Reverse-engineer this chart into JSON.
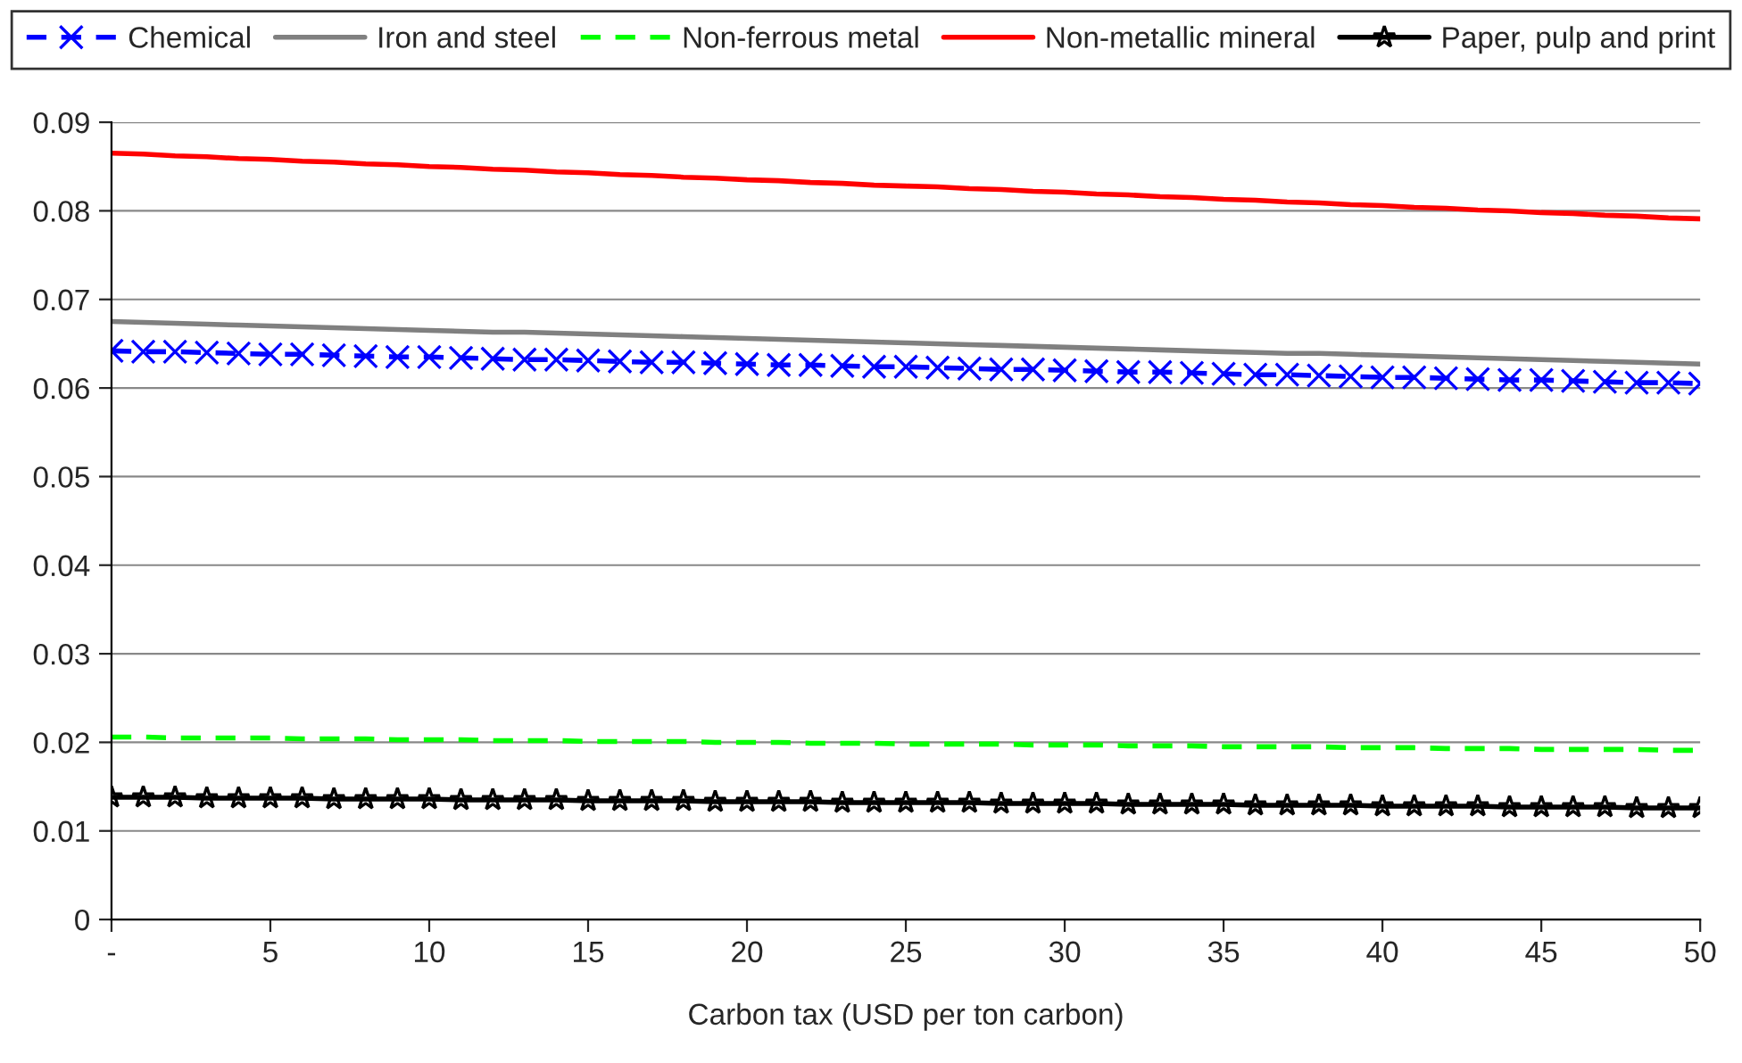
{
  "chart_data": {
    "type": "line",
    "xlabel": "Carbon tax (USD per ton carbon)",
    "x": [
      0,
      1,
      2,
      3,
      4,
      5,
      6,
      7,
      8,
      9,
      10,
      11,
      12,
      13,
      14,
      15,
      16,
      17,
      18,
      19,
      20,
      21,
      22,
      23,
      24,
      25,
      26,
      27,
      28,
      29,
      30,
      31,
      32,
      33,
      34,
      35,
      36,
      37,
      38,
      39,
      40,
      41,
      42,
      43,
      44,
      45,
      46,
      47,
      48,
      49,
      50
    ],
    "xlim": [
      0,
      50
    ],
    "xticks": [
      {
        "value": 0,
        "label": "-"
      },
      5,
      10,
      15,
      20,
      25,
      30,
      35,
      40,
      45,
      50
    ],
    "ylim": [
      0,
      0.09
    ],
    "yticks": [
      0,
      0.01,
      0.02,
      0.03,
      0.04,
      0.05,
      0.06,
      0.07,
      0.08,
      0.09
    ],
    "grid": "y",
    "legend": "top",
    "series": [
      {
        "name": "Chemical",
        "color": "#0000ff",
        "marker": "cross",
        "line_style": "dashed",
        "values": [
          0.0642,
          0.0641,
          0.0641,
          0.064,
          0.0639,
          0.0638,
          0.0638,
          0.0637,
          0.0636,
          0.0635,
          0.0635,
          0.0634,
          0.0633,
          0.0632,
          0.0632,
          0.0631,
          0.063,
          0.0629,
          0.0629,
          0.0628,
          0.0627,
          0.0626,
          0.0626,
          0.0625,
          0.0624,
          0.0624,
          0.0623,
          0.0622,
          0.0621,
          0.0621,
          0.062,
          0.0619,
          0.0618,
          0.0618,
          0.0617,
          0.0616,
          0.0615,
          0.0615,
          0.0614,
          0.0613,
          0.0612,
          0.0612,
          0.0611,
          0.061,
          0.0609,
          0.0609,
          0.0608,
          0.0607,
          0.0606,
          0.0606,
          0.0605
        ]
      },
      {
        "name": "Iron and steel",
        "color": "#808080",
        "line_style": "solid",
        "values": [
          0.0675,
          0.0674,
          0.0673,
          0.0672,
          0.0671,
          0.067,
          0.0669,
          0.0668,
          0.0667,
          0.0666,
          0.0665,
          0.0664,
          0.0663,
          0.0663,
          0.0662,
          0.0661,
          0.066,
          0.0659,
          0.0658,
          0.0657,
          0.0656,
          0.0655,
          0.0654,
          0.0653,
          0.0652,
          0.0651,
          0.065,
          0.0649,
          0.0648,
          0.0647,
          0.0646,
          0.0645,
          0.0644,
          0.0643,
          0.0642,
          0.0641,
          0.064,
          0.0639,
          0.0639,
          0.0638,
          0.0637,
          0.0636,
          0.0635,
          0.0634,
          0.0633,
          0.0632,
          0.0631,
          0.063,
          0.0629,
          0.0628,
          0.0627
        ]
      },
      {
        "name": "Non-ferrous metal",
        "color": "#00ff00",
        "line_style": "dashed",
        "values": [
          0.0206,
          0.0206,
          0.0205,
          0.0205,
          0.0205,
          0.0205,
          0.0204,
          0.0204,
          0.0204,
          0.0203,
          0.0203,
          0.0203,
          0.0202,
          0.0202,
          0.0202,
          0.0201,
          0.0201,
          0.0201,
          0.0201,
          0.02,
          0.02,
          0.02,
          0.0199,
          0.0199,
          0.0199,
          0.0198,
          0.0198,
          0.0198,
          0.0198,
          0.0197,
          0.0197,
          0.0197,
          0.0196,
          0.0196,
          0.0196,
          0.0195,
          0.0195,
          0.0195,
          0.0195,
          0.0194,
          0.0194,
          0.0194,
          0.0193,
          0.0193,
          0.0193,
          0.0192,
          0.0192,
          0.0192,
          0.0192,
          0.0191,
          0.0191
        ]
      },
      {
        "name": "Non-metallic mineral",
        "color": "#ff0000",
        "line_style": "solid",
        "values": [
          0.0865,
          0.0864,
          0.0862,
          0.0861,
          0.0859,
          0.0858,
          0.0856,
          0.0855,
          0.0853,
          0.0852,
          0.085,
          0.0849,
          0.0847,
          0.0846,
          0.0844,
          0.0843,
          0.0841,
          0.084,
          0.0838,
          0.0837,
          0.0835,
          0.0834,
          0.0832,
          0.0831,
          0.0829,
          0.0828,
          0.0827,
          0.0825,
          0.0824,
          0.0822,
          0.0821,
          0.0819,
          0.0818,
          0.0816,
          0.0815,
          0.0813,
          0.0812,
          0.081,
          0.0809,
          0.0807,
          0.0806,
          0.0804,
          0.0803,
          0.0801,
          0.08,
          0.0798,
          0.0797,
          0.0795,
          0.0794,
          0.0792,
          0.0791
        ]
      },
      {
        "name": "Paper, pulp and print",
        "color": "#000000",
        "marker": "star",
        "line_style": "solid",
        "values": [
          0.0138,
          0.0138,
          0.0138,
          0.0137,
          0.0137,
          0.0137,
          0.0137,
          0.0136,
          0.0136,
          0.0136,
          0.0136,
          0.0135,
          0.0135,
          0.0135,
          0.0135,
          0.0134,
          0.0134,
          0.0134,
          0.0134,
          0.0133,
          0.0133,
          0.0133,
          0.0133,
          0.0132,
          0.0132,
          0.0132,
          0.0132,
          0.0132,
          0.0131,
          0.0131,
          0.0131,
          0.0131,
          0.013,
          0.013,
          0.013,
          0.013,
          0.0129,
          0.0129,
          0.0129,
          0.0129,
          0.0128,
          0.0128,
          0.0128,
          0.0128,
          0.0127,
          0.0127,
          0.0127,
          0.0127,
          0.0126,
          0.0126,
          0.0126
        ]
      }
    ]
  }
}
